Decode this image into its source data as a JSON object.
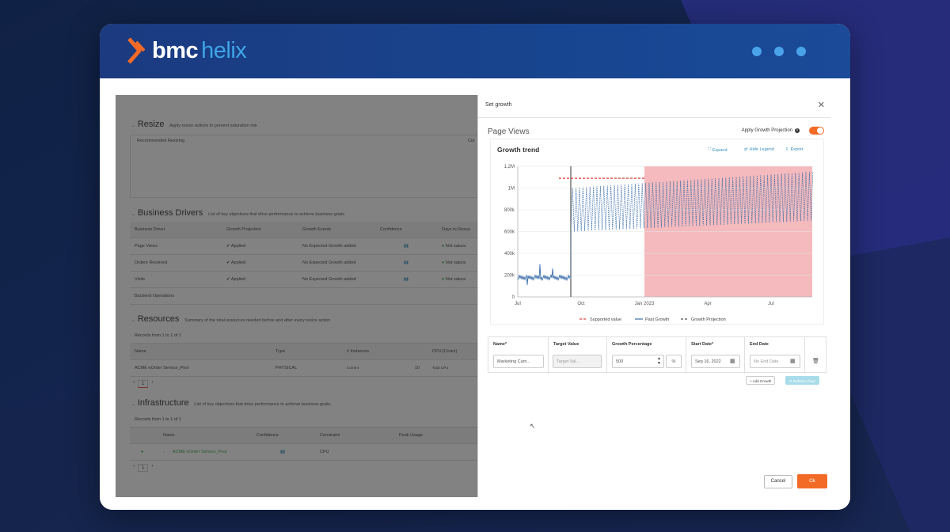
{
  "brand": {
    "bmc": "bmc",
    "helix": "helix"
  },
  "left": {
    "resize": {
      "title": "Resize",
      "subtitle": "Apply resize actions to prevent saturation risk",
      "col1": "Recommended Resizing",
      "col2": "Cur"
    },
    "business_drivers": {
      "title": "Business Drivers",
      "subtitle": "List of key objectives that drive performance to achieve business goals.",
      "headers": [
        "Business Driver",
        "Growth Projection",
        "Growth Events",
        "Confidence",
        "Days to Resou"
      ],
      "rows": [
        {
          "driver": "Page Views",
          "projection": "Applied",
          "events": "No Expected Growth added",
          "status": "Not satura"
        },
        {
          "driver": "Orders Received",
          "projection": "Applied",
          "events": "No Expected Growth added",
          "status": "Not satura"
        },
        {
          "driver": "Visits",
          "projection": "Applied",
          "events": "No Expected Growth added",
          "status": "Not satura"
        },
        {
          "driver": "Backend Operations",
          "projection": "",
          "events": "",
          "status": ""
        }
      ]
    },
    "resources": {
      "title": "Resources",
      "subtitle": "Summary of the total resources needed before and after every resize action",
      "records": "Records from 1 to 1 of 1",
      "headers": [
        "Name",
        "Type",
        "# Instances",
        "CPU [Cores]"
      ],
      "row": {
        "name": "ACME eOrder Service_Pool",
        "type": "PHYSICAL",
        "inst_label": "Current",
        "inst": "10",
        "cpu": "Total CPU"
      },
      "page": "1"
    },
    "infrastructure": {
      "title": "Infrastructure",
      "subtitle": "List of key objectives that drive performance to achieve business goals.",
      "records": "Records from 1 to 1 of 1",
      "headers": [
        "Name",
        "Confidence",
        "Constraint",
        "Peak Usage"
      ],
      "row": {
        "name": "ACME eOrder Service_Pool",
        "constraint": "CPU"
      },
      "page": "1"
    }
  },
  "modal": {
    "title": "Set growth",
    "metric": "Page Views",
    "apply_label": "Apply Growth Projection",
    "chart_title": "Growth trend",
    "tools": {
      "expand": "Expand",
      "hide_legend": "Hide Legend",
      "export": "Export"
    },
    "form": {
      "headers": [
        "Name*",
        "Target Value",
        "Growth Percentage",
        "Start Date*",
        "End Date"
      ],
      "name": "Marketing Cam...",
      "target": "Target Val...",
      "growth": "500",
      "unit": "%",
      "start": "Sep 16, 2022",
      "end": "No End Date"
    },
    "add_growth": "Add Growth",
    "refresh": "Refresh Chart",
    "cancel": "Cancel",
    "ok": "Ok"
  },
  "chart_data": {
    "type": "line",
    "title": "Growth trend",
    "x_ticks": [
      "Jul",
      "Oct",
      "Jan 2023",
      "Apr",
      "Jul"
    ],
    "y_ticks": [
      "0",
      "200k",
      "400k",
      "600k",
      "800k",
      "1M",
      "1,2M"
    ],
    "ylim": [
      0,
      1200000
    ],
    "legend": [
      "Supported value",
      "Past Growth",
      "Growth Projection"
    ],
    "supported_value": 1090000,
    "series": [
      {
        "name": "Past Growth",
        "x_range": [
          "Jul",
          "Sep"
        ],
        "values_approx": [
          160000,
          170000,
          180000,
          240000,
          160000,
          150000
        ]
      },
      {
        "name": "Growth Projection",
        "x_range": [
          "Sep",
          "Aug"
        ],
        "min_approx": 600000,
        "max_approx": 1150000
      }
    ],
    "colors": {
      "supported": "#e2443b",
      "past": "#3b6faa",
      "projection": "#3b6faa",
      "saturation": "#f3b3b6"
    }
  }
}
